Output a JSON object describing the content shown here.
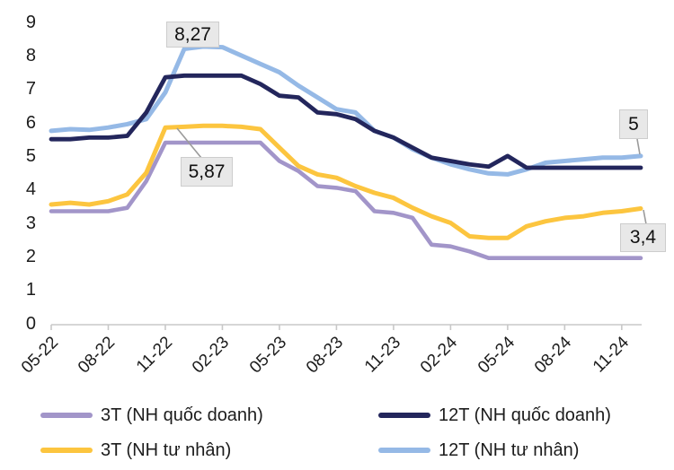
{
  "chart_data": {
    "type": "line",
    "title": "",
    "xlabel": "",
    "ylabel": "",
    "ylim": [
      0,
      9
    ],
    "y_ticks": [
      0,
      1,
      2,
      3,
      4,
      5,
      6,
      7,
      8,
      9
    ],
    "grid": false,
    "legend_position": "bottom",
    "axis_color": "#c8c8c8",
    "x": [
      "05-22",
      "06-22",
      "07-22",
      "08-22",
      "09-22",
      "10-22",
      "11-22",
      "12-22",
      "01-23",
      "02-23",
      "03-23",
      "04-23",
      "05-23",
      "06-23",
      "07-23",
      "08-23",
      "09-23",
      "10-23",
      "11-23",
      "12-23",
      "01-24",
      "02-24",
      "03-24",
      "04-24",
      "05-24",
      "06-24",
      "07-24",
      "08-24",
      "09-24",
      "10-24",
      "11-24",
      "12-24"
    ],
    "x_tick_labels": [
      "05-22",
      "08-22",
      "11-22",
      "02-23",
      "05-23",
      "08-23",
      "11-23",
      "02-24",
      "05-24",
      "08-24",
      "11-24"
    ],
    "series": [
      {
        "name": "3T (NH quốc doanh)",
        "color": "#a295c9",
        "values": [
          3.35,
          3.35,
          3.35,
          3.35,
          3.45,
          4.25,
          5.4,
          5.4,
          5.4,
          5.4,
          5.4,
          5.4,
          4.85,
          4.55,
          4.1,
          4.05,
          3.95,
          3.35,
          3.3,
          3.15,
          2.35,
          2.3,
          2.15,
          1.95,
          1.95,
          1.95,
          1.95,
          1.95,
          1.95,
          1.95,
          1.95,
          1.95
        ]
      },
      {
        "name": "3T (NH tư nhân)",
        "color": "#fcc53f",
        "values": [
          3.55,
          3.6,
          3.55,
          3.65,
          3.85,
          4.5,
          5.85,
          5.87,
          5.9,
          5.9,
          5.87,
          5.8,
          5.25,
          4.7,
          4.45,
          4.35,
          4.1,
          3.9,
          3.75,
          3.45,
          3.2,
          3.0,
          2.6,
          2.55,
          2.55,
          2.9,
          3.05,
          3.15,
          3.2,
          3.3,
          3.35,
          3.43
        ]
      },
      {
        "name": "12T (NH quốc doanh)",
        "color": "#23265c",
        "values": [
          5.5,
          5.5,
          5.55,
          5.55,
          5.6,
          6.3,
          7.35,
          7.4,
          7.4,
          7.4,
          7.4,
          7.15,
          6.8,
          6.75,
          6.3,
          6.25,
          6.1,
          5.75,
          5.55,
          5.25,
          4.95,
          4.85,
          4.75,
          4.68,
          5.0,
          4.65,
          4.65,
          4.65,
          4.65,
          4.65,
          4.65,
          4.65
        ]
      },
      {
        "name": "12T (NH tư nhân)",
        "color": "#95b9e6",
        "values": [
          5.75,
          5.8,
          5.78,
          5.85,
          5.95,
          6.1,
          6.9,
          8.2,
          8.27,
          8.25,
          8.0,
          7.75,
          7.5,
          7.1,
          6.75,
          6.4,
          6.3,
          5.75,
          5.55,
          5.2,
          4.95,
          4.75,
          4.6,
          4.48,
          4.45,
          4.6,
          4.8,
          4.85,
          4.9,
          4.95,
          4.95,
          5.0
        ]
      }
    ],
    "annotations": [
      {
        "text": "8,27",
        "series": "12T (NH tư nhân)",
        "x": "01-23",
        "value": 8.27
      },
      {
        "text": "5,87",
        "series": "3T (NH tư nhân)",
        "x": "12-22",
        "value": 5.87
      },
      {
        "text": "5",
        "series": "12T (NH tư nhân)",
        "x": "12-24",
        "value": 5.0
      },
      {
        "text": "3,4",
        "series": "3T (NH tư nhân)",
        "x": "12-24",
        "value": 3.4
      }
    ]
  }
}
